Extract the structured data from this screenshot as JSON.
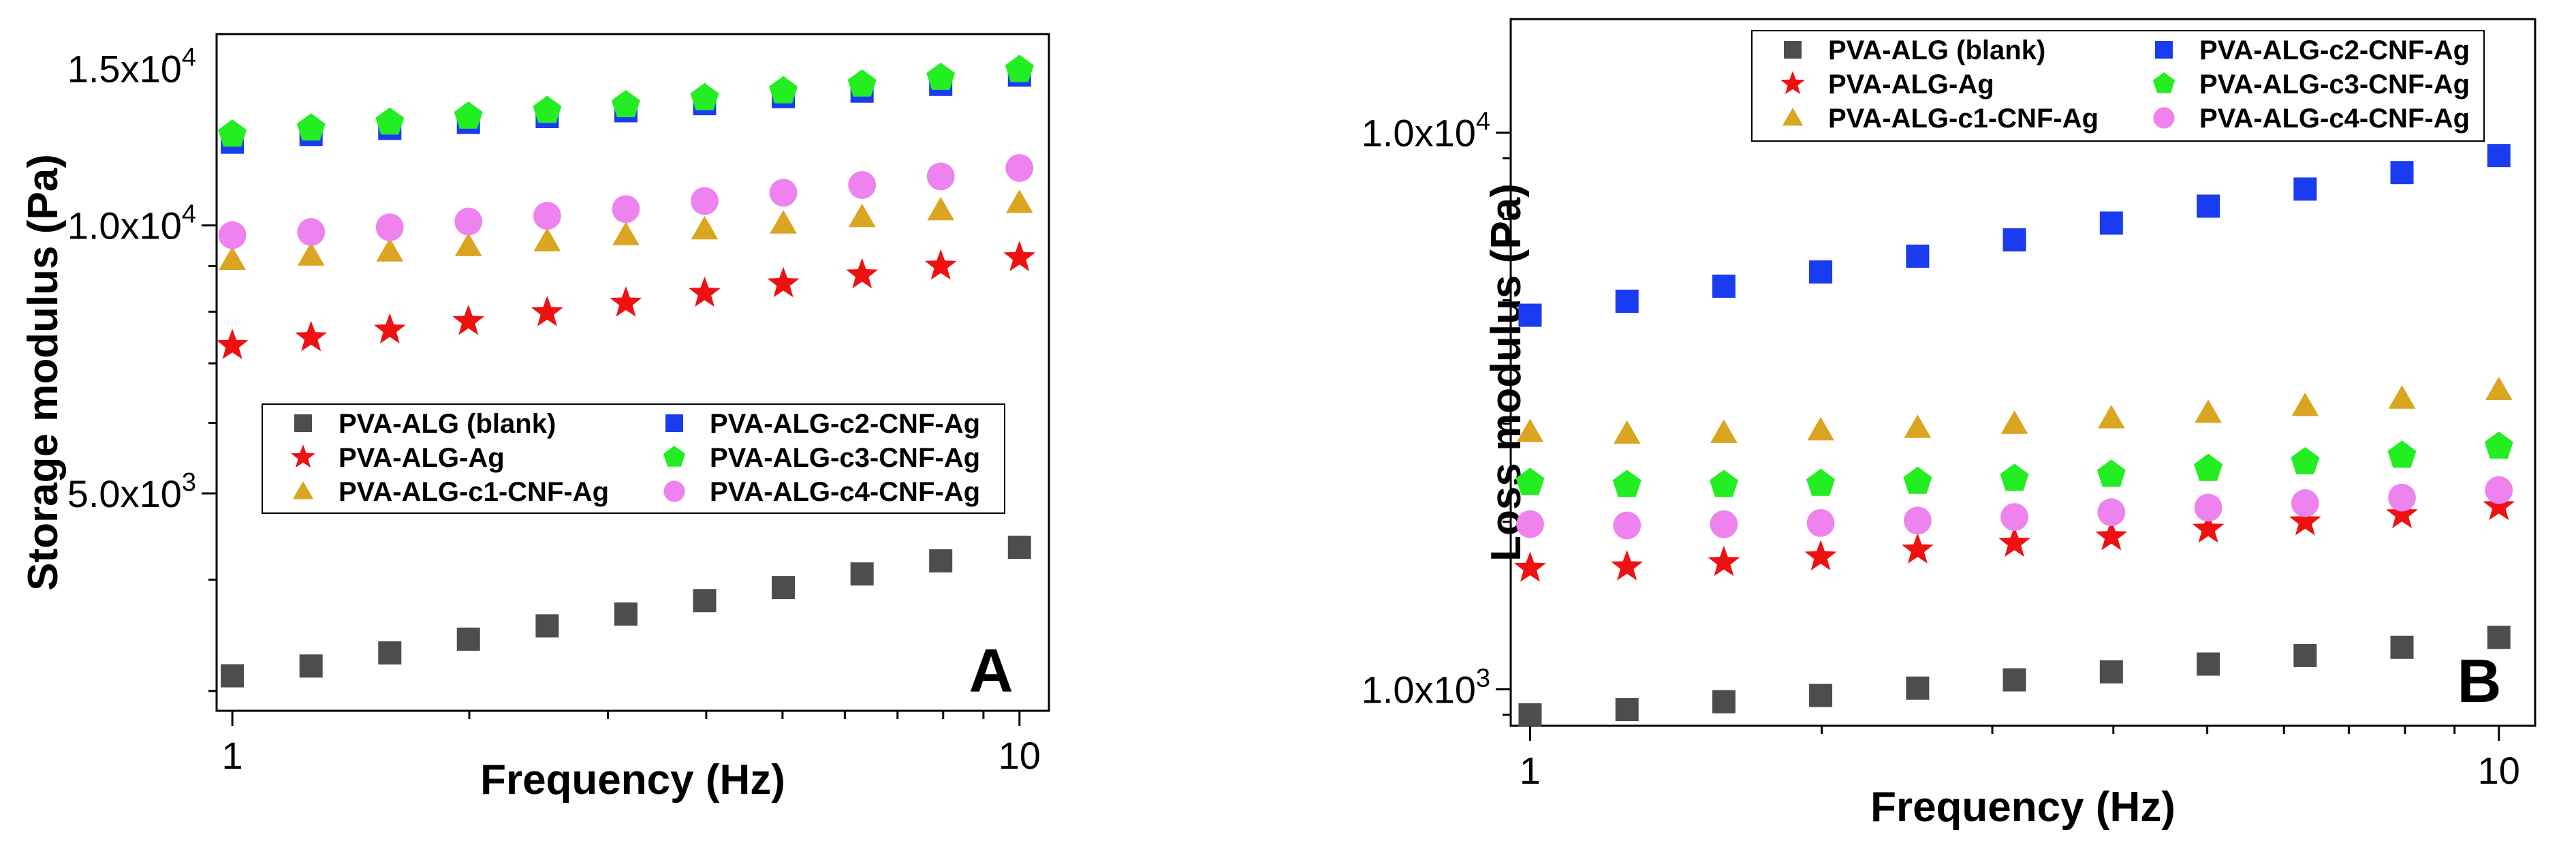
{
  "figure": {
    "panels": [
      "A",
      "B"
    ]
  },
  "chart_data": [
    {
      "type": "scatter",
      "panel_label": "A",
      "xlabel": "Frequency (Hz)",
      "ylabel": "Storage modulus (Pa)",
      "xscale": "log",
      "yscale": "log",
      "xlim": [
        0.955,
        10.9
      ],
      "ylim": [
        2850,
        16400
      ],
      "x_ticks": [
        {
          "value": 1,
          "label": "1"
        },
        {
          "value": 10,
          "label": "10"
        }
      ],
      "y_ticks": [
        {
          "value": 5000,
          "label": "5.0x10",
          "exp": "3"
        },
        {
          "value": 10000,
          "label": "1.0x10",
          "exp": "4"
        },
        {
          "value": 15000,
          "label": "1.5x10",
          "exp": "4"
        }
      ],
      "legend_position": "center-left",
      "x": [
        1,
        1.259,
        1.585,
        1.995,
        2.512,
        3.162,
        3.981,
        5.012,
        6.31,
        7.943,
        10
      ],
      "series": [
        {
          "name": "PVA-ALG (blank)",
          "marker": "square",
          "color": "#4d4d4d",
          "values": [
            3120,
            3200,
            3310,
            3430,
            3550,
            3660,
            3790,
            3920,
            4060,
            4200,
            4350
          ]
        },
        {
          "name": "PVA-ALG-Ag",
          "marker": "star",
          "color": "#ee1111",
          "values": [
            7330,
            7480,
            7630,
            7800,
            7980,
            8180,
            8390,
            8600,
            8800,
            9000,
            9200
          ]
        },
        {
          "name": "PVA-ALG-c1-CNF-Ag",
          "marker": "triangle",
          "color": "#daa520",
          "values": [
            9150,
            9250,
            9350,
            9480,
            9600,
            9750,
            9900,
            10050,
            10220,
            10400,
            10600
          ]
        },
        {
          "name": "PVA-ALG-c2-CNF-Ag",
          "marker": "square",
          "color": "#1a3cf0",
          "values": [
            12400,
            12650,
            12850,
            13050,
            13250,
            13450,
            13700,
            13950,
            14150,
            14400,
            14750
          ]
        },
        {
          "name": "PVA-ALG-c3-CNF-Ag",
          "marker": "pentagon",
          "color": "#22ee22",
          "values": [
            12650,
            12850,
            13050,
            13250,
            13450,
            13650,
            13900,
            14150,
            14400,
            14650,
            14950
          ]
        },
        {
          "name": "PVA-ALG-c4-CNF-Ag",
          "marker": "circle",
          "color": "#ee82ee",
          "values": [
            9750,
            9830,
            9950,
            10100,
            10250,
            10430,
            10650,
            10880,
            11100,
            11350,
            11600
          ]
        }
      ]
    },
    {
      "type": "scatter",
      "panel_label": "B",
      "xlabel": "Frequency (Hz)",
      "ylabel": "Loss modulus (Pa)",
      "xscale": "log",
      "yscale": "log",
      "xlim": [
        0.955,
        10.9
      ],
      "ylim": [
        860,
        16000
      ],
      "x_ticks": [
        {
          "value": 1,
          "label": "1"
        },
        {
          "value": 10,
          "label": "10"
        }
      ],
      "y_ticks": [
        {
          "value": 1000,
          "label": "1.0x10",
          "exp": "3"
        },
        {
          "value": 10000,
          "label": "1.0x10",
          "exp": "4"
        }
      ],
      "legend_position": "top-left",
      "x": [
        1,
        1.259,
        1.585,
        1.995,
        2.512,
        3.162,
        3.981,
        5.012,
        6.31,
        7.943,
        10
      ],
      "series": [
        {
          "name": "PVA-ALG (blank)",
          "marker": "square",
          "color": "#4d4d4d",
          "values": [
            900,
            920,
            950,
            975,
            1005,
            1040,
            1075,
            1110,
            1150,
            1190,
            1240
          ]
        },
        {
          "name": "PVA-ALG-Ag",
          "marker": "star",
          "color": "#ee1111",
          "values": [
            1650,
            1660,
            1690,
            1730,
            1780,
            1830,
            1880,
            1940,
            2000,
            2060,
            2130
          ]
        },
        {
          "name": "PVA-ALG-c1-CNF-Ag",
          "marker": "triangle",
          "color": "#daa520",
          "values": [
            2900,
            2880,
            2890,
            2920,
            2950,
            3000,
            3070,
            3140,
            3230,
            3330,
            3450
          ]
        },
        {
          "name": "PVA-ALG-c2-CNF-Ag",
          "marker": "square",
          "color": "#1a3cf0",
          "values": [
            4700,
            4980,
            5300,
            5620,
            6000,
            6420,
            6880,
            7380,
            7920,
            8480,
            9100
          ]
        },
        {
          "name": "PVA-ALG-c3-CNF-Ag",
          "marker": "pentagon",
          "color": "#22ee22",
          "values": [
            2350,
            2330,
            2330,
            2340,
            2360,
            2390,
            2430,
            2490,
            2560,
            2630,
            2730
          ]
        },
        {
          "name": "PVA-ALG-c4-CNF-Ag",
          "marker": "circle",
          "color": "#ee82ee",
          "values": [
            1980,
            1970,
            1980,
            1990,
            2010,
            2040,
            2080,
            2120,
            2160,
            2210,
            2280
          ]
        }
      ]
    }
  ]
}
